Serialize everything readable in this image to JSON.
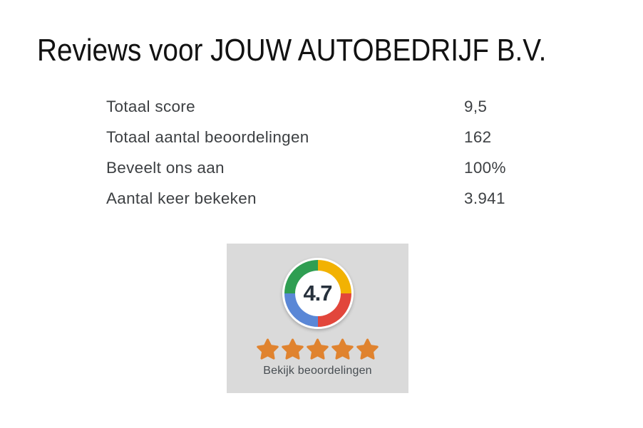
{
  "header": {
    "title": "Reviews voor JOUW AUTOBEDRIJF B.V."
  },
  "stats": {
    "rows": [
      {
        "label": "Totaal score",
        "value": "9,5"
      },
      {
        "label": "Totaal aantal beoordelingen",
        "value": "162"
      },
      {
        "label": "Beveelt ons aan",
        "value": "100%"
      },
      {
        "label": "Aantal keer bekeken",
        "value": "3.941"
      }
    ]
  },
  "badge": {
    "score": "4.7",
    "stars_count": 5,
    "link_label": "Bekijk beoordelingen",
    "colors": {
      "card_background": "#dadada",
      "ring_green": "#2f9e52",
      "ring_yellow": "#f2b202",
      "ring_red": "#e2463b",
      "ring_blue": "#5a87d6",
      "star_orange": "#e0832f",
      "score_text": "#27313c"
    }
  }
}
